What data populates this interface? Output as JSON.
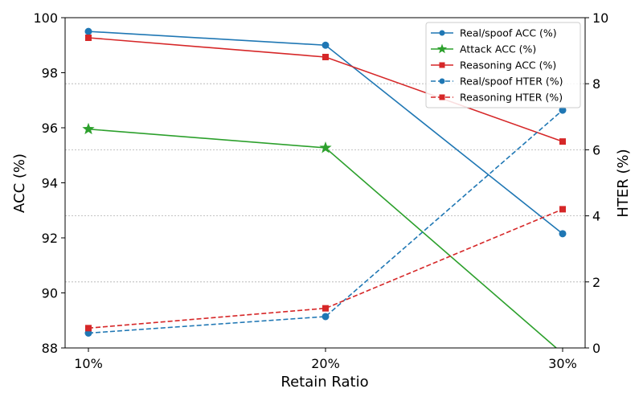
{
  "chart_data": {
    "type": "line",
    "xlabel": "Retain Ratio",
    "ylabel": "ACC (%)",
    "y2label": "HTER (%)",
    "categories": [
      "10%",
      "20%",
      "30%"
    ],
    "ylim": [
      88,
      100
    ],
    "y2lim": [
      0,
      10
    ],
    "y_ticks": [
      "88",
      "90",
      "92",
      "94",
      "96",
      "98",
      "100"
    ],
    "y2_ticks": [
      "0",
      "2",
      "4",
      "6",
      "8",
      "10"
    ],
    "grid": "horizontal dotted lines at secondary (HTER) ticks",
    "legend_position": "top-right",
    "series": [
      {
        "name": "Real/spoof ACC (%)",
        "axis": "left",
        "values": [
          99.5,
          99.0,
          92.15
        ],
        "color": "#1f77b4",
        "marker": "circle",
        "dash": "solid"
      },
      {
        "name": "Attack ACC (%)",
        "axis": "left",
        "values": [
          95.95,
          95.27,
          87.8
        ],
        "color": "#2ca02c",
        "marker": "star",
        "dash": "solid"
      },
      {
        "name": "Reasoning ACC (%)",
        "axis": "left",
        "values": [
          99.27,
          98.57,
          95.5
        ],
        "color": "#d62728",
        "marker": "square",
        "dash": "solid"
      },
      {
        "name": "Real/spoof HTER (%)",
        "axis": "right",
        "values": [
          0.45,
          0.95,
          7.2
        ],
        "color": "#1f77b4",
        "marker": "circle",
        "dash": "dashed"
      },
      {
        "name": "Reasoning HTER (%)",
        "axis": "right",
        "values": [
          0.6,
          1.2,
          4.2
        ],
        "color": "#d62728",
        "marker": "square",
        "dash": "dashed"
      }
    ]
  }
}
